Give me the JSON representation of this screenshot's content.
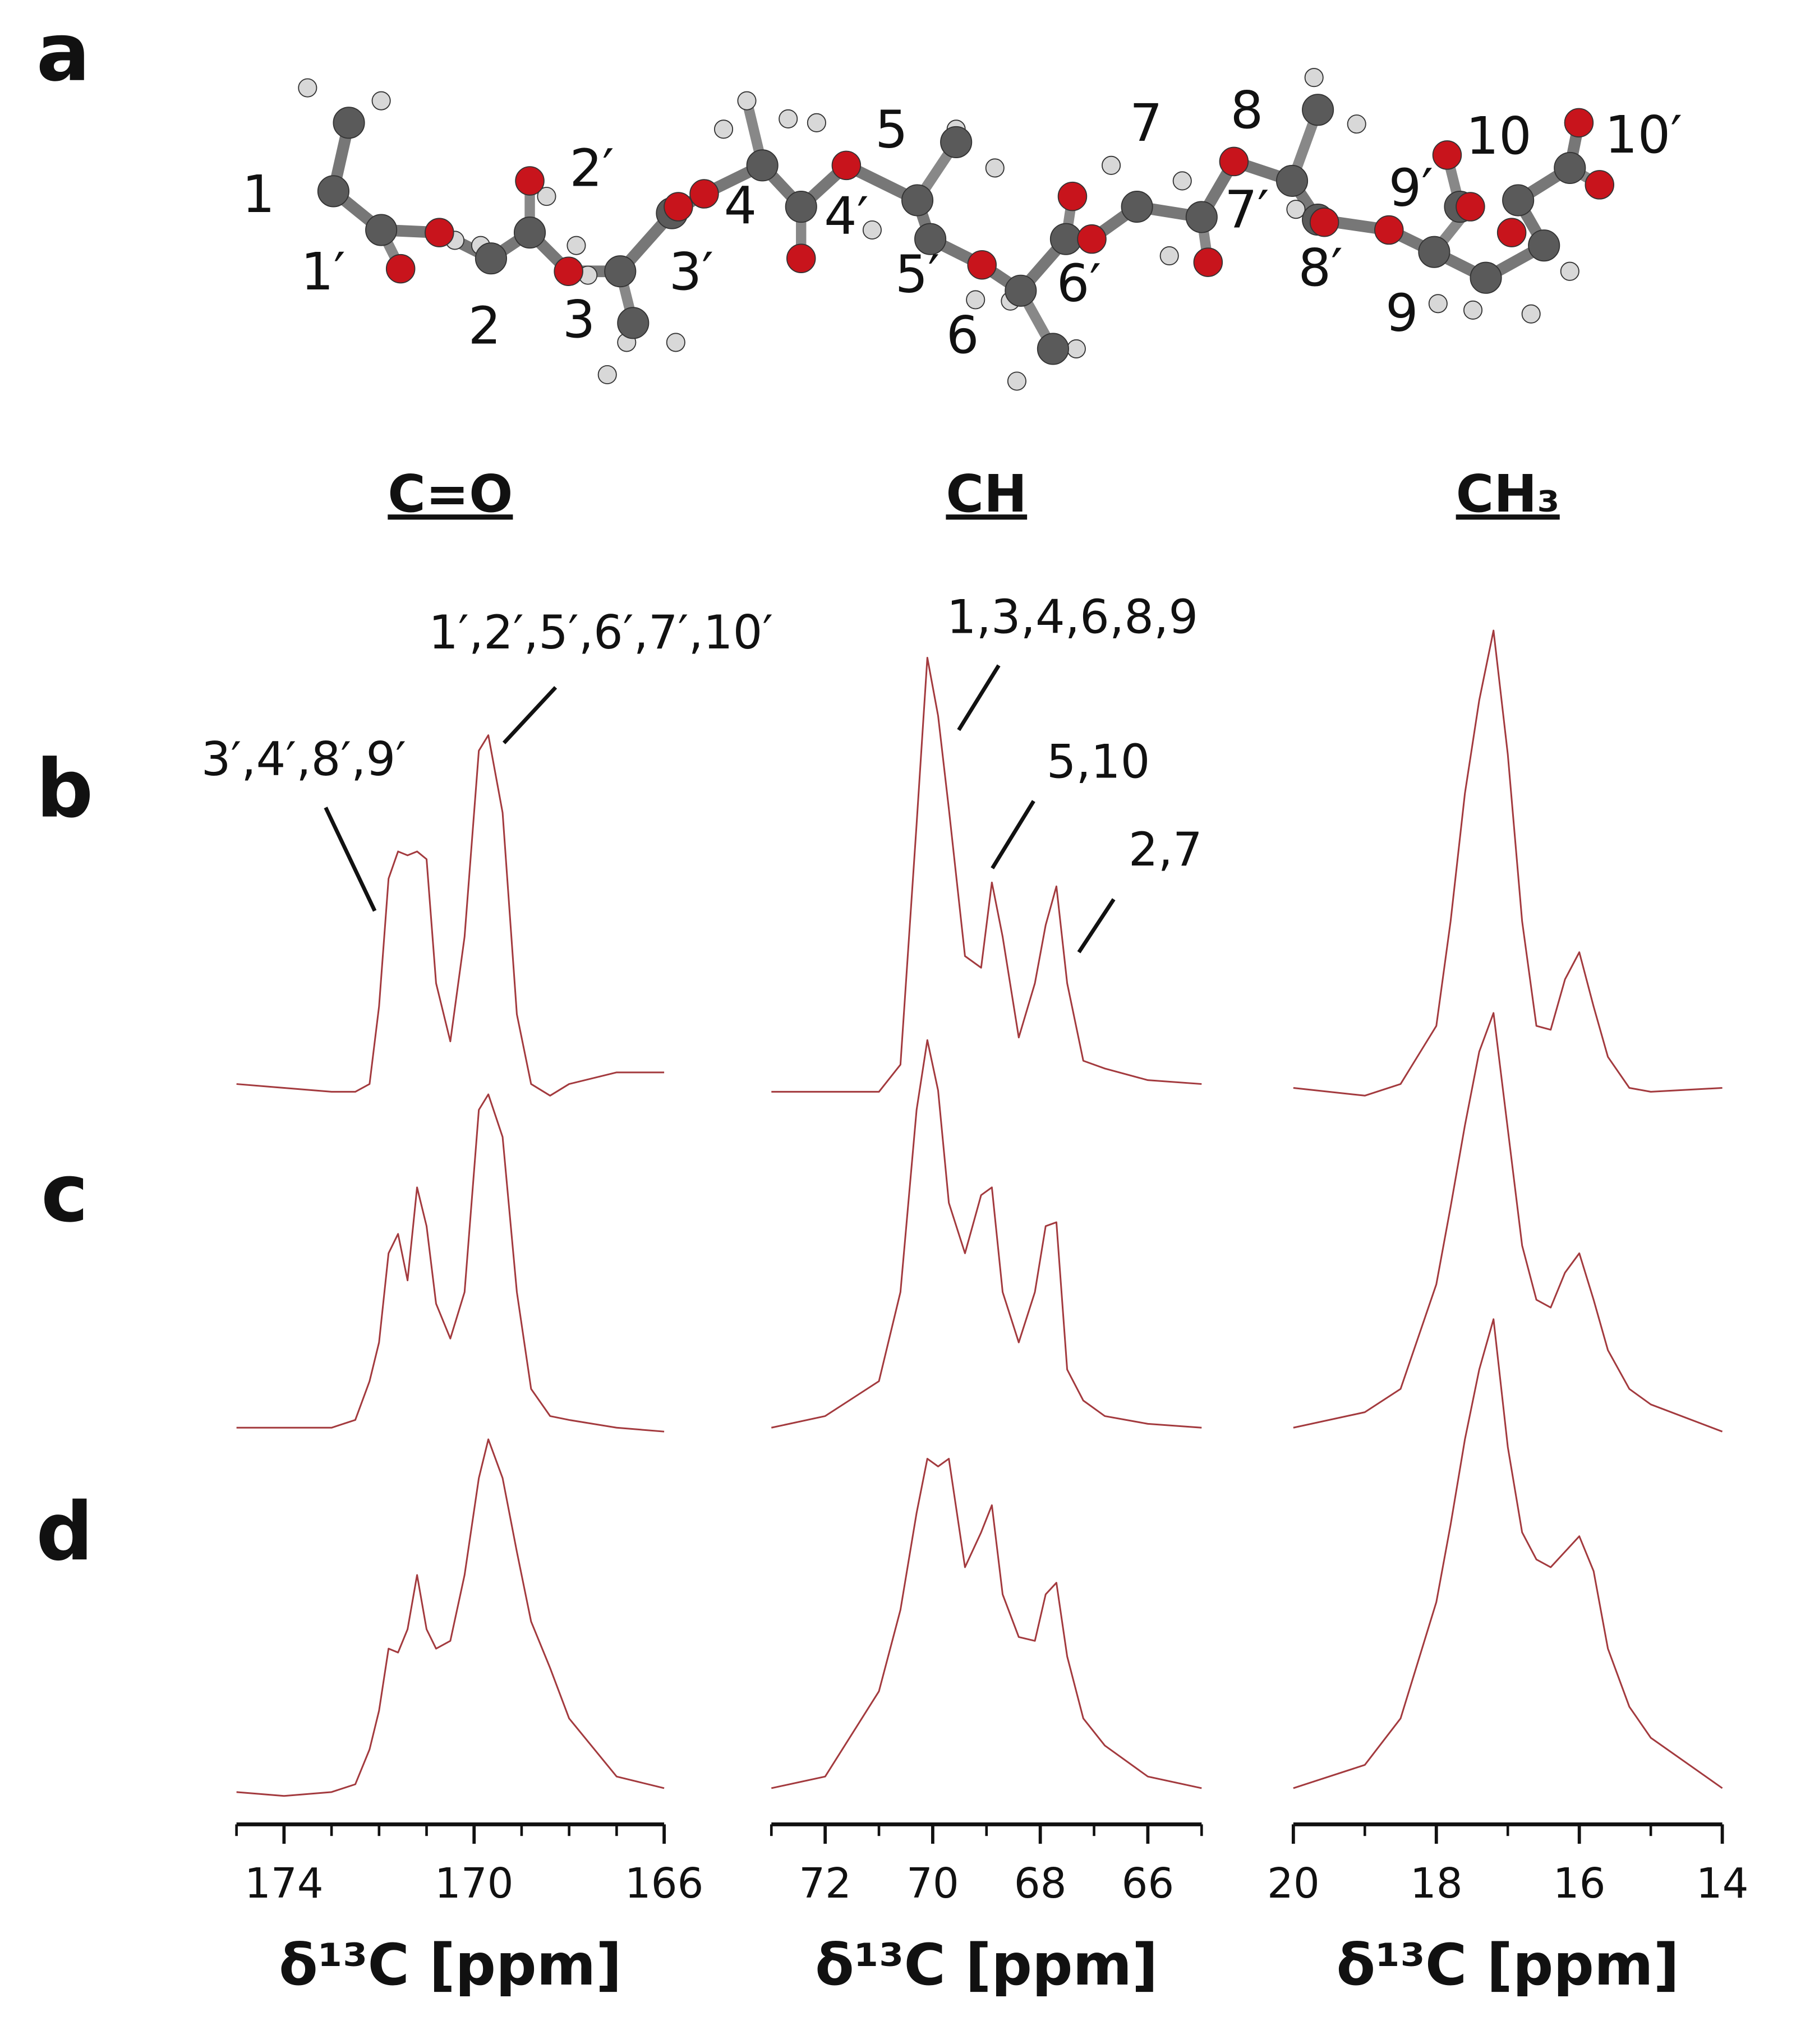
{
  "panel_label": "a",
  "molecule_labels": [
    "1",
    "1′",
    "2",
    "2′",
    "3",
    "3′",
    "4",
    "4′",
    "5",
    "5′",
    "6",
    "6′",
    "7",
    "7′",
    "8",
    "8′",
    "9",
    "9′",
    "10",
    "10′"
  ],
  "row_labels": [
    "b",
    "c",
    "d"
  ],
  "chart_data": [
    {
      "type": "line",
      "title": "C=O",
      "xlabel": "δ¹³C [ppm]",
      "xlim": [
        175,
        166
      ],
      "xticks": [
        174,
        170,
        166
      ],
      "minor_xticks": [
        175,
        173,
        172,
        171,
        169,
        168,
        167
      ],
      "annotations": [
        "3′,4′,8′,9′",
        "1′,2′,5′,6′,7′,10′"
      ],
      "x": [
        175,
        174,
        173,
        172.5,
        172.2,
        172,
        171.8,
        171.6,
        171.4,
        171.2,
        171,
        170.8,
        170.5,
        170.2,
        169.9,
        169.7,
        169.4,
        169.1,
        168.8,
        168.4,
        168,
        167,
        166
      ],
      "series": [
        {
          "color": "#a33a3e",
          "values": [
            2,
            1,
            0,
            0,
            2,
            22,
            55,
            62,
            61,
            62,
            60,
            28,
            13,
            40,
            88,
            92,
            72,
            20,
            2,
            -1,
            2,
            5,
            5
          ]
        },
        {
          "color": "#a33a3e",
          "values": [
            1,
            1,
            1,
            3,
            13,
            23,
            46,
            51,
            39,
            63,
            53,
            33,
            24,
            36,
            83,
            87,
            76,
            36,
            11,
            4,
            3,
            1,
            0
          ]
        },
        {
          "color": "#a33a3e",
          "values": [
            1,
            0,
            1,
            3,
            12,
            22,
            38,
            37,
            43,
            57,
            43,
            38,
            40,
            57,
            82,
            92,
            82,
            63,
            45,
            33,
            20,
            5,
            2
          ]
        }
      ]
    },
    {
      "type": "line",
      "title": "CH",
      "xlabel": "δ¹³C [ppm]",
      "xlim": [
        73,
        65
      ],
      "xticks": [
        72,
        70,
        68,
        66
      ],
      "minor_xticks": [
        73,
        71,
        69,
        67,
        65
      ],
      "annotations": [
        "1,3,4,6,8,9",
        "5,10",
        "2,7"
      ],
      "x": [
        73,
        72,
        71,
        70.6,
        70.3,
        70.1,
        69.9,
        69.7,
        69.4,
        69.1,
        68.9,
        68.7,
        68.4,
        68.1,
        67.9,
        67.7,
        67.5,
        67.2,
        66.8,
        66,
        65
      ],
      "series": [
        {
          "color": "#a33a3e",
          "values": [
            0,
            0,
            0,
            7,
            69,
            112,
            97,
            73,
            35,
            32,
            54,
            40,
            14,
            28,
            43,
            53,
            28,
            8,
            6,
            3,
            2
          ]
        },
        {
          "color": "#a33a3e",
          "values": [
            1,
            4,
            13,
            36,
            83,
            101,
            88,
            59,
            46,
            61,
            63,
            36,
            23,
            36,
            53,
            54,
            16,
            8,
            4,
            2,
            1
          ]
        },
        {
          "color": "#a33a3e",
          "values": [
            2,
            5,
            27,
            48,
            73,
            87,
            85,
            87,
            59,
            68,
            75,
            52,
            41,
            40,
            52,
            55,
            36,
            20,
            13,
            5,
            2
          ]
        }
      ]
    },
    {
      "type": "line",
      "title": "CH₃",
      "xlabel": "δ¹³C [ppm]",
      "xlim": [
        20,
        14
      ],
      "xticks": [
        20,
        18,
        16,
        14
      ],
      "minor_xticks": [
        19,
        17,
        15
      ],
      "annotations": [],
      "x": [
        20,
        19,
        18.5,
        18,
        17.8,
        17.6,
        17.4,
        17.2,
        17.0,
        16.8,
        16.6,
        16.4,
        16.2,
        16.0,
        15.8,
        15.6,
        15.3,
        15,
        14
      ],
      "series": [
        {
          "color": "#a33a3e",
          "values": [
            1,
            -1,
            2,
            17,
            44,
            77,
            101,
            119,
            87,
            44,
            17,
            16,
            29,
            36,
            22,
            9,
            1,
            0,
            1
          ]
        },
        {
          "color": "#a33a3e",
          "values": [
            1,
            5,
            11,
            38,
            58,
            79,
            98,
            108,
            78,
            48,
            34,
            32,
            41,
            46,
            34,
            21,
            11,
            7,
            0
          ]
        },
        {
          "color": "#a33a3e",
          "values": [
            2,
            8,
            20,
            50,
            70,
            92,
            110,
            123,
            90,
            68,
            61,
            59,
            63,
            67,
            58,
            38,
            23,
            15,
            2
          ]
        }
      ]
    }
  ]
}
